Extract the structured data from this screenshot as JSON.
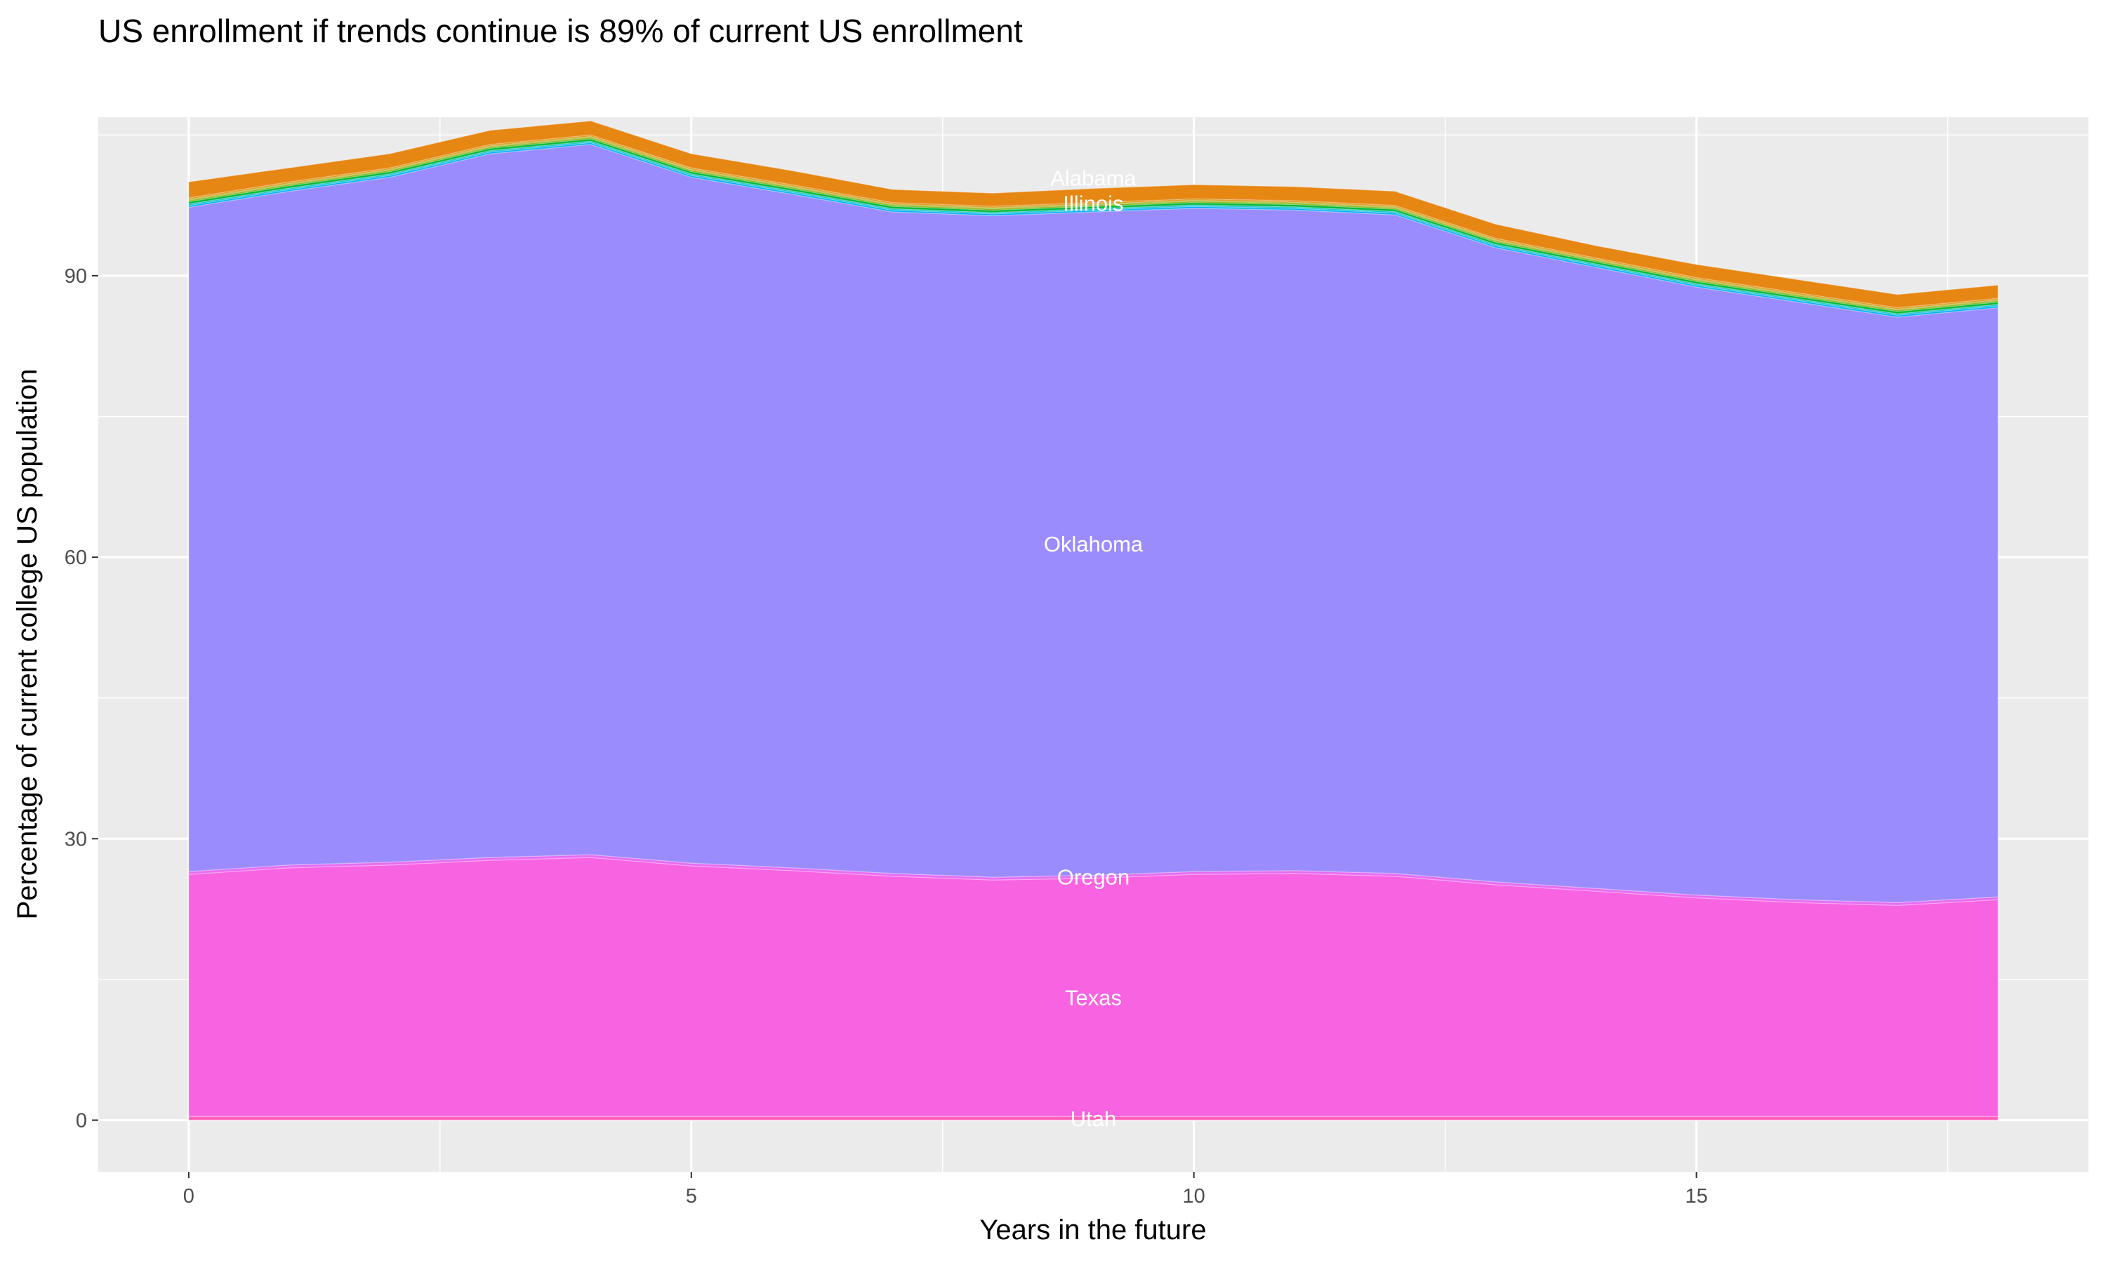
{
  "chart_data": {
    "type": "area",
    "stacked": true,
    "title": "US enrollment if trends continue is 89% of current US enrollment",
    "xlabel": "Years in the future",
    "ylabel": "Percentage of current college US population",
    "x": [
      0,
      1,
      2,
      3,
      4,
      5,
      6,
      7,
      8,
      9,
      10,
      11,
      12,
      13,
      14,
      15,
      16,
      17,
      18
    ],
    "xlim": [
      -0.9,
      18.9
    ],
    "ylim": [
      -5.5,
      106.9
    ],
    "x_ticks": [
      "0",
      "5",
      "10",
      "15"
    ],
    "x_tick_values": [
      0,
      5,
      10,
      15
    ],
    "y_ticks": [
      "0",
      "30",
      "60",
      "90"
    ],
    "y_tick_values": [
      0,
      30,
      60,
      90
    ],
    "grid": true,
    "legend": "none",
    "label_x": 9,
    "series": [
      {
        "name": "Utah",
        "color": "#FF62BC",
        "values": [
          0.4,
          0.4,
          0.4,
          0.4,
          0.4,
          0.4,
          0.4,
          0.4,
          0.4,
          0.4,
          0.4,
          0.4,
          0.4,
          0.4,
          0.4,
          0.4,
          0.4,
          0.4,
          0.4
        ]
      },
      {
        "name": "Texas",
        "color": "#F763E0",
        "values": [
          25.8,
          26.5,
          26.8,
          27.3,
          27.6,
          26.7,
          26.2,
          25.6,
          25.2,
          25.4,
          25.8,
          25.9,
          25.6,
          24.7,
          24.0,
          23.3,
          22.8,
          22.5,
          23.1
        ]
      },
      {
        "name": "Oregon",
        "color": "#E76BF3",
        "values": [
          0.3,
          0.3,
          0.3,
          0.3,
          0.3,
          0.3,
          0.3,
          0.3,
          0.3,
          0.3,
          0.3,
          0.3,
          0.3,
          0.3,
          0.3,
          0.3,
          0.3,
          0.3,
          0.3
        ]
      },
      {
        "name": "Oklahoma",
        "color": "#9A8CFD",
        "values": [
          70.8,
          71.8,
          73.0,
          75.0,
          75.7,
          73.1,
          71.8,
          70.5,
          70.5,
          70.7,
          70.7,
          70.4,
          70.2,
          67.6,
          66.2,
          64.8,
          63.7,
          62.4,
          62.8
        ]
      },
      {
        "color": "#00B0F6",
        "values": [
          0.2,
          0.2,
          0.2,
          0.2,
          0.2,
          0.2,
          0.2,
          0.2,
          0.2,
          0.2,
          0.2,
          0.2,
          0.2,
          0.2,
          0.2,
          0.2,
          0.2,
          0.2,
          0.2
        ]
      },
      {
        "color": "#00BFC4",
        "values": [
          0.15,
          0.15,
          0.15,
          0.15,
          0.15,
          0.15,
          0.15,
          0.15,
          0.15,
          0.15,
          0.15,
          0.15,
          0.15,
          0.15,
          0.15,
          0.15,
          0.15,
          0.15,
          0.15
        ]
      },
      {
        "color": "#00BA38",
        "values": [
          0.25,
          0.25,
          0.25,
          0.25,
          0.25,
          0.25,
          0.25,
          0.25,
          0.25,
          0.25,
          0.25,
          0.25,
          0.25,
          0.25,
          0.25,
          0.25,
          0.25,
          0.25,
          0.25
        ]
      },
      {
        "color": "#7CAE00",
        "values": [
          0.15,
          0.15,
          0.15,
          0.15,
          0.15,
          0.15,
          0.15,
          0.15,
          0.15,
          0.15,
          0.15,
          0.15,
          0.15,
          0.15,
          0.15,
          0.15,
          0.15,
          0.15,
          0.15
        ]
      },
      {
        "color": "#A3A500",
        "values": [
          0.1,
          0.1,
          0.1,
          0.1,
          0.1,
          0.1,
          0.1,
          0.1,
          0.1,
          0.1,
          0.1,
          0.1,
          0.1,
          0.1,
          0.1,
          0.1,
          0.1,
          0.1,
          0.1
        ]
      },
      {
        "name": "Illinois",
        "color": "#D89000",
        "values": [
          0.15,
          0.15,
          0.15,
          0.15,
          0.15,
          0.15,
          0.15,
          0.15,
          0.15,
          0.15,
          0.15,
          0.15,
          0.15,
          0.15,
          0.15,
          0.15,
          0.15,
          0.15,
          0.15
        ]
      },
      {
        "name": "Alabama",
        "color": "#E68613",
        "values": [
          1.7,
          1.5,
          1.5,
          1.5,
          1.5,
          1.5,
          1.5,
          1.4,
          1.4,
          1.5,
          1.5,
          1.5,
          1.5,
          1.5,
          1.3,
          1.4,
          1.4,
          1.4,
          1.4
        ]
      }
    ],
    "colors": {
      "panel": "#EBEBEB",
      "grid": "#FFFFFF",
      "label": "#FFFFFF"
    }
  }
}
